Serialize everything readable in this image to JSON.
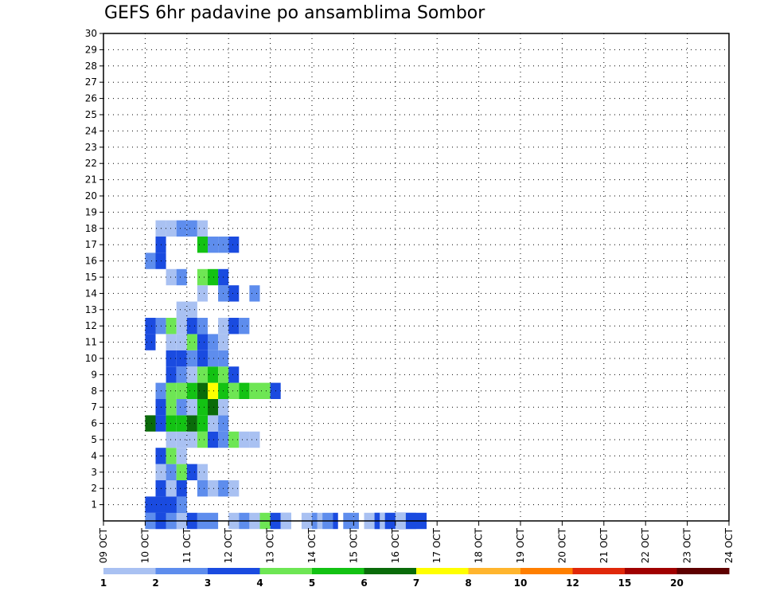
{
  "chart_data": {
    "type": "heatmap",
    "title": "GEFS 6hr padavine po ansamblima Sombor",
    "xlabel": "",
    "ylabel": "",
    "y_ticks": [
      "1",
      "2",
      "3",
      "4",
      "5",
      "6",
      "7",
      "8",
      "9",
      "10",
      "11",
      "12",
      "13",
      "14",
      "15",
      "16",
      "17",
      "18",
      "19",
      "20",
      "21",
      "22",
      "23",
      "24",
      "25",
      "26",
      "27",
      "28",
      "29",
      "30"
    ],
    "x_ticks": [
      "09 OCT",
      "10 OCT",
      "11 OCT",
      "12 OCT",
      "13 OCT",
      "14 OCT",
      "15 OCT",
      "16 OCT",
      "17 OCT",
      "18 OCT",
      "19 OCT",
      "20 OCT",
      "21 OCT",
      "22 OCT",
      "23 OCT",
      "24 OCT"
    ],
    "x_range_days": [
      0,
      15
    ],
    "y_range_members": [
      0,
      30
    ],
    "step_days": 0.25,
    "legend_labels": [
      "1",
      "2",
      "3",
      "4",
      "5",
      "6",
      "7",
      "8",
      "10",
      "12",
      "15",
      "20"
    ],
    "colors": [
      "#a9c1f2",
      "#5e8ded",
      "#1a4be0",
      "#6ee654",
      "#13c213",
      "#0a6b0a",
      "#ffff00",
      "#ffb52e",
      "#ff7f00",
      "#e0280a",
      "#a00000",
      "#5e0000"
    ],
    "cells": [
      [
        0,
        10,
        1,
        0
      ],
      [
        0,
        10,
        4,
        1
      ],
      [
        0,
        10.25,
        1,
        2
      ],
      [
        0,
        10.5,
        1,
        1
      ],
      [
        0,
        11,
        1,
        2
      ],
      [
        0,
        11.25,
        1,
        1
      ],
      [
        0,
        11.5,
        1,
        1
      ],
      [
        0,
        12,
        1,
        0
      ],
      [
        0,
        12.25,
        1,
        1
      ],
      [
        0,
        12.5,
        1,
        0
      ],
      [
        0,
        12.75,
        1,
        3
      ],
      [
        0,
        13,
        1,
        2
      ],
      [
        0,
        13.25,
        1,
        1
      ],
      [
        0,
        13.75,
        2,
        0
      ],
      [
        0,
        14.25,
        1,
        1
      ],
      [
        0,
        15.5,
        1,
        1
      ],
      [
        0,
        10.75,
        1,
        0
      ],
      [
        0,
        15.75,
        1,
        0
      ],
      [
        0,
        16,
        1,
        2
      ],
      [
        0,
        16.25,
        1,
        1
      ],
      [
        0,
        16.5,
        1,
        2
      ],
      [
        0,
        13.25,
        1,
        0
      ],
      [
        0,
        14.75,
        1,
        1
      ],
      [
        0,
        15.25,
        2,
        0
      ],
      [
        0,
        15.75,
        3,
        2
      ],
      [
        0,
        14,
        0.5,
        1
      ],
      [
        0,
        14.5,
        0.5,
        2
      ],
      [
        0,
        15,
        0.5,
        1
      ],
      [
        0,
        15.5,
        0.5,
        2
      ],
      [
        0,
        16,
        1,
        0
      ],
      [
        1,
        10,
        4,
        2
      ],
      [
        1,
        10.75,
        1,
        1
      ],
      [
        1,
        10.25,
        1,
        2
      ],
      [
        1,
        10.5,
        1,
        2
      ],
      [
        2,
        10.25,
        1,
        2
      ],
      [
        2,
        10.5,
        1,
        0
      ],
      [
        2,
        10.75,
        1,
        2
      ],
      [
        2,
        11.25,
        1,
        1
      ],
      [
        2,
        11.5,
        1,
        0
      ],
      [
        2,
        11.75,
        1,
        1
      ],
      [
        2,
        12,
        1,
        0
      ],
      [
        3,
        10.25,
        1,
        0
      ],
      [
        3,
        10.5,
        1,
        1
      ],
      [
        3,
        10.75,
        1,
        3
      ],
      [
        3,
        11,
        1,
        2
      ],
      [
        3,
        11.25,
        1,
        0
      ],
      [
        4,
        10.25,
        1,
        2
      ],
      [
        4,
        10.5,
        1,
        3
      ],
      [
        4,
        10.75,
        1,
        0
      ],
      [
        5,
        10.5,
        1,
        0
      ],
      [
        5,
        10.75,
        1,
        0
      ],
      [
        5,
        11,
        1,
        0
      ],
      [
        5,
        11.25,
        1,
        3
      ],
      [
        5,
        11.5,
        1,
        2
      ],
      [
        5,
        11.75,
        1,
        1
      ],
      [
        5,
        12,
        1,
        3
      ],
      [
        5,
        12.25,
        1,
        0
      ],
      [
        5,
        12.5,
        1,
        0
      ],
      [
        6,
        10,
        1,
        5
      ],
      [
        6,
        10.25,
        1,
        2
      ],
      [
        6,
        10.5,
        1,
        4
      ],
      [
        6,
        10.75,
        1,
        4
      ],
      [
        6,
        11,
        1,
        5
      ],
      [
        6,
        11.25,
        1,
        4
      ],
      [
        6,
        11.5,
        1,
        0
      ],
      [
        6,
        11.75,
        1,
        1
      ],
      [
        7,
        10.25,
        1,
        2
      ],
      [
        7,
        10.5,
        1,
        3
      ],
      [
        7,
        10.75,
        1,
        1
      ],
      [
        7,
        11,
        1,
        0
      ],
      [
        7,
        11.25,
        1,
        4
      ],
      [
        7,
        11.5,
        1,
        5
      ],
      [
        7,
        11.75,
        1,
        0
      ],
      [
        8,
        10.25,
        1,
        1
      ],
      [
        8,
        10.5,
        1,
        3
      ],
      [
        8,
        10.75,
        1,
        3
      ],
      [
        8,
        11,
        1,
        4
      ],
      [
        8,
        11.25,
        1,
        5
      ],
      [
        8,
        11.5,
        1,
        6
      ],
      [
        8,
        11.75,
        1,
        4
      ],
      [
        8,
        12,
        1,
        3
      ],
      [
        8,
        12.25,
        1,
        4
      ],
      [
        8,
        12.5,
        1,
        3
      ],
      [
        8,
        12.75,
        1,
        3
      ],
      [
        8,
        13,
        1,
        2
      ],
      [
        9,
        10.5,
        1,
        2
      ],
      [
        9,
        10.75,
        1,
        1
      ],
      [
        9,
        11,
        1,
        0
      ],
      [
        9,
        11.25,
        1,
        3
      ],
      [
        9,
        11.5,
        1,
        4
      ],
      [
        9,
        11.75,
        1,
        3
      ],
      [
        9,
        12,
        1,
        2
      ],
      [
        10,
        10.5,
        1,
        2
      ],
      [
        10,
        10.75,
        1,
        2
      ],
      [
        10,
        11,
        1,
        1
      ],
      [
        10,
        11.25,
        1,
        2
      ],
      [
        10,
        11.5,
        1,
        1
      ],
      [
        10,
        11.75,
        1,
        1
      ],
      [
        11,
        10,
        1,
        2
      ],
      [
        11,
        10.5,
        1,
        0
      ],
      [
        11,
        10.75,
        1,
        0
      ],
      [
        11,
        11,
        1,
        3
      ],
      [
        11,
        11.25,
        1,
        2
      ],
      [
        11,
        11.5,
        1,
        1
      ],
      [
        11,
        11.75,
        1,
        0
      ],
      [
        12,
        10,
        1,
        2
      ],
      [
        12,
        10.25,
        1,
        1
      ],
      [
        12,
        10.5,
        1,
        3
      ],
      [
        12,
        10.75,
        1,
        0
      ],
      [
        12,
        11,
        1,
        2
      ],
      [
        12,
        11.25,
        1,
        1
      ],
      [
        12,
        11.75,
        1,
        0
      ],
      [
        12,
        12,
        1,
        2
      ],
      [
        12,
        12.25,
        1,
        1
      ],
      [
        13,
        11,
        1,
        0
      ],
      [
        13,
        10.75,
        1,
        0
      ],
      [
        14,
        11.25,
        1,
        0
      ],
      [
        14,
        11.75,
        1,
        1
      ],
      [
        14,
        12,
        1,
        2
      ],
      [
        14,
        12.5,
        1,
        1
      ],
      [
        15,
        10.5,
        1,
        0
      ],
      [
        15,
        10.75,
        1,
        1
      ],
      [
        15,
        11.25,
        1,
        3
      ],
      [
        15,
        11.5,
        1,
        4
      ],
      [
        15,
        11.75,
        1,
        2
      ],
      [
        16,
        10,
        1,
        1
      ],
      [
        16,
        10.25,
        1,
        2
      ],
      [
        17,
        10.25,
        1,
        2
      ],
      [
        17,
        11.25,
        1,
        4
      ],
      [
        17,
        11.5,
        1,
        1
      ],
      [
        17,
        11.75,
        1,
        1
      ],
      [
        17,
        12,
        1,
        2
      ],
      [
        18,
        10.25,
        1,
        0
      ],
      [
        18,
        10.5,
        1,
        0
      ],
      [
        18,
        10.75,
        1,
        1
      ],
      [
        18,
        11,
        1,
        1
      ],
      [
        18,
        11.25,
        1,
        0
      ]
    ],
    "grid": true
  }
}
